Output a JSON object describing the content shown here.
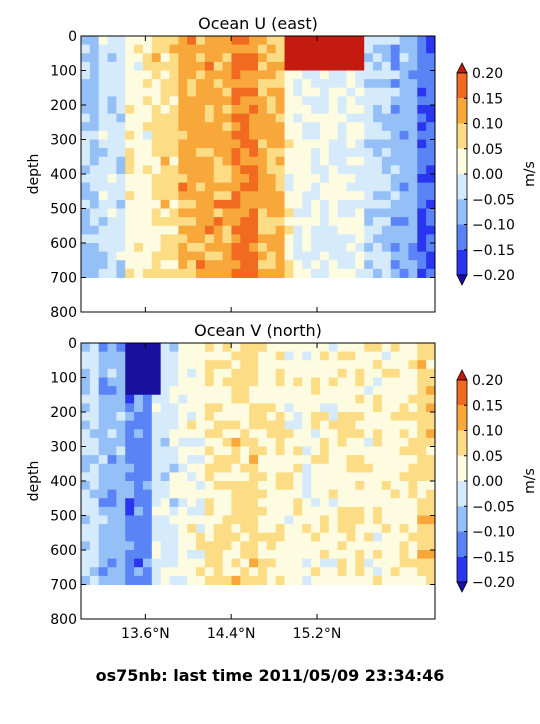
{
  "colors": {
    "levels": [
      -0.2,
      -0.15,
      -0.1,
      -0.05,
      0.0,
      0.05,
      0.1,
      0.15,
      0.2
    ],
    "bands": [
      "#2a35f0",
      "#5a84f5",
      "#95c0f7",
      "#d5ebfb",
      "#fdfbe0",
      "#fcdc84",
      "#f8a83a",
      "#f26a20"
    ],
    "under": "#1a10a0",
    "over": "#c41a10"
  },
  "chart_data": [
    {
      "type": "heatmap",
      "title": "Ocean U (east)",
      "ylabel": "depth",
      "xlabel": "",
      "ylim": [
        800,
        0
      ],
      "yticks": [
        "0",
        "100",
        "200",
        "300",
        "400",
        "500",
        "600",
        "700",
        "800"
      ],
      "xticks": [],
      "colorbar": {
        "label": "m/s",
        "ticks": [
          "0.20",
          "0.15",
          "0.10",
          "0.05",
          "0.00",
          "−0.05",
          "−0.10",
          "−0.15",
          "−0.20"
        ]
      },
      "lat_range": [
        13.0,
        16.3
      ],
      "bottom_depth_m": 700,
      "columns": [
        {
          "lat": 13.05,
          "u": -0.06
        },
        {
          "lat": 13.3,
          "u": -0.03
        },
        {
          "lat": 13.55,
          "u": 0.03
        },
        {
          "lat": 13.8,
          "u": 0.07
        },
        {
          "lat": 14.05,
          "u": 0.12
        },
        {
          "lat": 14.3,
          "u": 0.12
        },
        {
          "lat": 14.55,
          "u": 0.15
        },
        {
          "lat": 14.8,
          "u": 0.11
        },
        {
          "lat": 15.05,
          "u": 0.02
        },
        {
          "lat": 15.3,
          "u": 0.0
        },
        {
          "lat": 15.55,
          "u": 0.0
        },
        {
          "lat": 15.8,
          "u": -0.04
        },
        {
          "lat": 16.05,
          "u": -0.08
        },
        {
          "lat": 16.25,
          "u": -0.14
        }
      ],
      "surface_jet": {
        "lat_min": 14.9,
        "lat_max": 15.65,
        "depth_max": 100,
        "u": 0.22
      }
    },
    {
      "type": "heatmap",
      "title": "Ocean V (north)",
      "ylabel": "depth",
      "xlabel": "",
      "ylim": [
        800,
        0
      ],
      "yticks": [
        "0",
        "100",
        "200",
        "300",
        "400",
        "500",
        "600",
        "700",
        "800"
      ],
      "xticks": [
        "13.6°N",
        "14.4°N",
        "15.2°N"
      ],
      "colorbar": {
        "label": "m/s",
        "ticks": [
          "0.20",
          "0.15",
          "0.10",
          "0.05",
          "0.00",
          "−0.05",
          "−0.10",
          "−0.15",
          "−0.20"
        ]
      },
      "lat_range": [
        13.0,
        16.3
      ],
      "bottom_depth_m": 700,
      "columns": [
        {
          "lat": 13.05,
          "v": -0.04
        },
        {
          "lat": 13.3,
          "v": -0.08
        },
        {
          "lat": 13.55,
          "v": -0.12
        },
        {
          "lat": 13.8,
          "v": -0.02
        },
        {
          "lat": 14.05,
          "v": 0.02
        },
        {
          "lat": 14.3,
          "v": 0.05
        },
        {
          "lat": 14.55,
          "v": 0.07
        },
        {
          "lat": 14.8,
          "v": 0.04
        },
        {
          "lat": 15.05,
          "v": 0.02
        },
        {
          "lat": 15.3,
          "v": 0.03
        },
        {
          "lat": 15.55,
          "v": 0.04
        },
        {
          "lat": 15.8,
          "v": 0.03
        },
        {
          "lat": 16.05,
          "v": 0.04
        },
        {
          "lat": 16.25,
          "v": 0.08
        }
      ],
      "surface_patch": {
        "lat_min": 13.4,
        "lat_max": 13.75,
        "depth_max": 140,
        "v": -0.22
      }
    }
  ],
  "footer": {
    "text": "os75nb: last time 2011/05/09 23:34:46"
  }
}
